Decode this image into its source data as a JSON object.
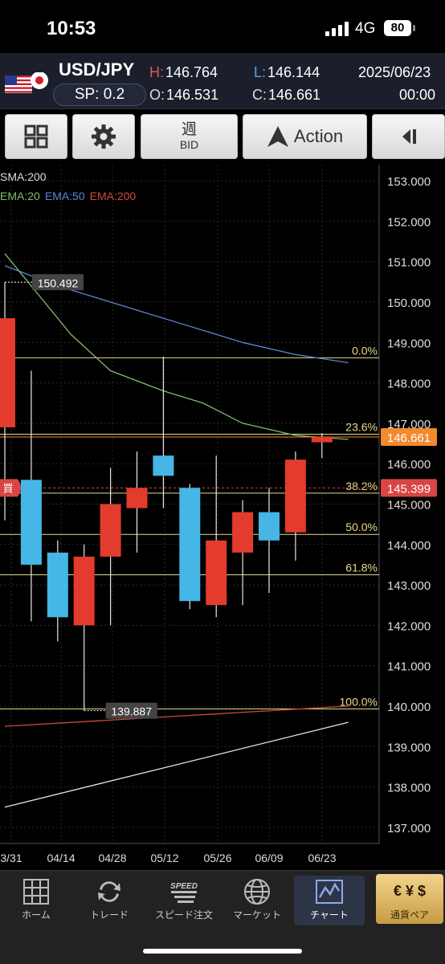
{
  "status_bar": {
    "time": "10:53",
    "network": "4G",
    "battery": "80"
  },
  "quote": {
    "pair": "USD/JPY",
    "spread": "SP: 0.2",
    "high_label": "H:",
    "high": "146.764",
    "low_label": "L:",
    "low": "146.144",
    "open_label": "O:",
    "open": "146.531",
    "close_label": "C:",
    "close": "146.661",
    "date": "2025/06/23",
    "time": "00:00"
  },
  "toolbar": {
    "period_main": "週",
    "period_sub": "BID",
    "action_label": "Action",
    "icons": [
      "grid-icon",
      "gear-icon",
      "action-logo-icon",
      "collapse-arrow-icon"
    ]
  },
  "legend": {
    "sma": "SMA:200",
    "ema20": "EMA:20",
    "ema50": "EMA:50",
    "ema200": "EMA:200",
    "colors": {
      "sma": "#e6e6e6",
      "ema20": "#7fbf6a",
      "ema50": "#5b86d6",
      "ema200": "#d04a3c"
    }
  },
  "chart_data": {
    "type": "candlestick",
    "y_range": [
      136.6,
      153.4
    ],
    "y_ticks": [
      "153.000",
      "152.000",
      "151.000",
      "150.000",
      "149.000",
      "148.000",
      "147.000",
      "146.000",
      "145.000",
      "144.000",
      "143.000",
      "142.000",
      "141.000",
      "140.000",
      "139.000",
      "138.000",
      "137.000"
    ],
    "x_labels": [
      "3/31",
      "04/14",
      "04/28",
      "05/12",
      "05/26",
      "06/09",
      "06/23"
    ],
    "candles": [
      {
        "open": 146.9,
        "high": 150.49,
        "low": 144.6,
        "close": 149.6
      },
      {
        "open": 145.6,
        "high": 148.3,
        "low": 142.1,
        "close": 143.5
      },
      {
        "open": 143.8,
        "high": 144.1,
        "low": 141.6,
        "close": 142.2
      },
      {
        "open": 142.0,
        "high": 144.0,
        "low": 139.89,
        "close": 143.7
      },
      {
        "open": 143.7,
        "high": 145.9,
        "low": 142.0,
        "close": 145.0
      },
      {
        "open": 144.9,
        "high": 146.3,
        "low": 143.8,
        "close": 145.4
      },
      {
        "open": 146.2,
        "high": 148.65,
        "low": 144.9,
        "close": 145.7
      },
      {
        "open": 145.4,
        "high": 145.5,
        "low": 142.4,
        "close": 142.6
      },
      {
        "open": 142.5,
        "high": 146.2,
        "low": 142.2,
        "close": 144.1
      },
      {
        "open": 143.8,
        "high": 145.1,
        "low": 142.5,
        "close": 144.8
      },
      {
        "open": 144.8,
        "high": 145.4,
        "low": 142.8,
        "close": 144.1
      },
      {
        "open": 144.3,
        "high": 146.3,
        "low": 143.6,
        "close": 146.1
      },
      {
        "open": 146.53,
        "high": 146.76,
        "low": 146.14,
        "close": 146.66
      }
    ],
    "sma200": [
      [
        0,
        137.5
      ],
      [
        13,
        139.6
      ]
    ],
    "ema200": [
      [
        0,
        139.5
      ],
      [
        13,
        140.0
      ]
    ],
    "ema50": [
      [
        0,
        150.9
      ],
      [
        2,
        150.4
      ],
      [
        5,
        149.8
      ],
      [
        7,
        149.4
      ],
      [
        9,
        149.0
      ],
      [
        11,
        148.7
      ],
      [
        13,
        148.5
      ]
    ],
    "ema20": [
      [
        0,
        151.2
      ],
      [
        1.5,
        150.0
      ],
      [
        2.5,
        149.2
      ],
      [
        4,
        148.3
      ],
      [
        6,
        147.8
      ],
      [
        7.5,
        147.5
      ],
      [
        9,
        147.0
      ],
      [
        11,
        146.7
      ],
      [
        13,
        146.6
      ]
    ],
    "high_marker": {
      "label": "150.492",
      "value": 150.492,
      "candle": 0
    },
    "low_marker": {
      "label": "139.887",
      "value": 139.887,
      "candle": 3
    },
    "fibonacci": [
      {
        "label": "0.0%",
        "value": 148.62
      },
      {
        "label": "23.6%",
        "value": 146.73
      },
      {
        "label": "38.2%",
        "value": 145.27
      },
      {
        "label": "50.0%",
        "value": 144.25
      },
      {
        "label": "61.8%",
        "value": 143.25
      },
      {
        "label": "100.0%",
        "value": 139.93
      }
    ],
    "current_price": {
      "label": "146.661",
      "value": 146.661
    },
    "buy_price": {
      "label": "145.399",
      "value": 145.399,
      "marker": "買"
    },
    "colors": {
      "up": "#e33b2e",
      "down": "#45b6e6",
      "fib": "#e8d98a",
      "current": "#f28a2e",
      "buy": "#d94545"
    }
  },
  "tabs": [
    {
      "label": "ホーム",
      "icon": "home-grid-icon"
    },
    {
      "label": "トレード",
      "icon": "trade-arrows-icon"
    },
    {
      "label": "スピード注文",
      "icon": "speed-order-icon",
      "icon_text": "SPEED"
    },
    {
      "label": "マーケット",
      "icon": "market-globe-icon"
    },
    {
      "label": "チャート",
      "icon": "chart-icon"
    },
    {
      "label": "通貨ペア",
      "icon": "currency-pair-icon",
      "icon_text": "€ ¥ $"
    }
  ]
}
